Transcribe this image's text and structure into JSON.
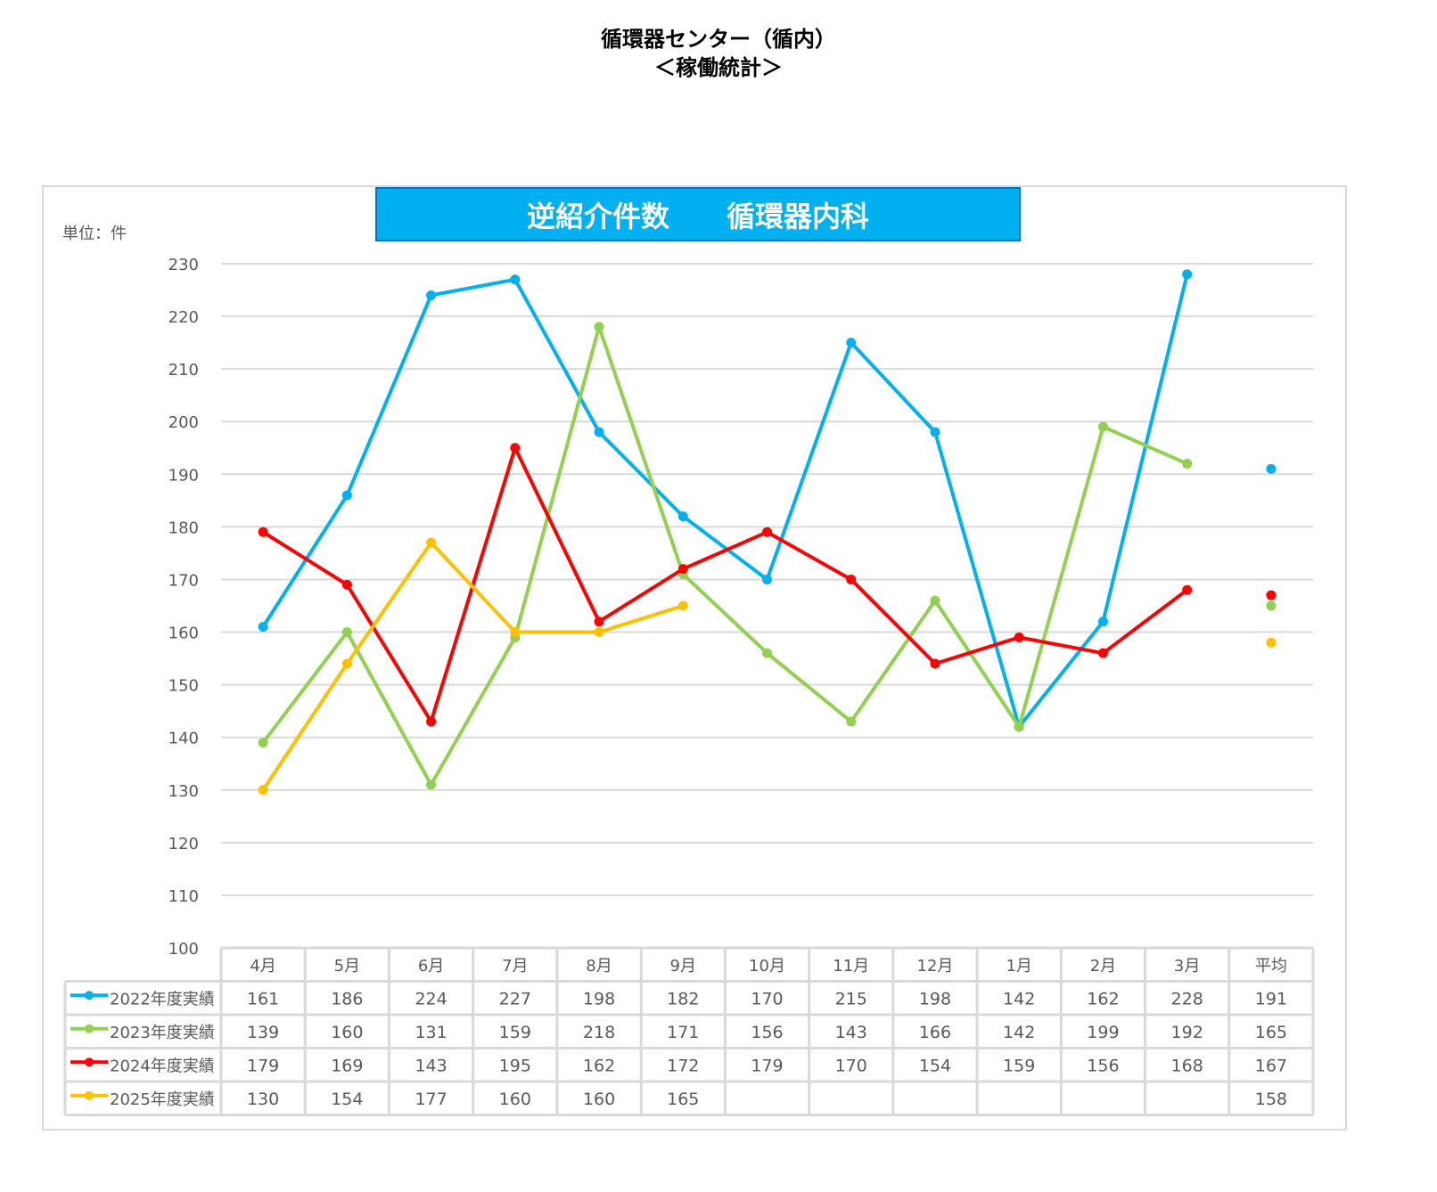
{
  "page_title": "循環器センター（循内）",
  "page_subtitle": "＜稼働統計＞",
  "chart_data": {
    "type": "line",
    "title": "逆紹介件数　　循環器内科",
    "unit_label": "単位：件",
    "categories": [
      "4月",
      "5月",
      "6月",
      "7月",
      "8月",
      "9月",
      "10月",
      "11月",
      "12月",
      "1月",
      "2月",
      "3月"
    ],
    "average_label": "平均",
    "ylim": [
      100,
      230
    ],
    "yticks": [
      100,
      110,
      120,
      130,
      140,
      150,
      160,
      170,
      180,
      190,
      200,
      210,
      220,
      230
    ],
    "grid": true,
    "legend": "data-table",
    "title_bg": "#00B0F0",
    "series": [
      {
        "name": "2022年度実績",
        "color": "#00B0F0",
        "values": [
          161,
          186,
          224,
          227,
          198,
          182,
          170,
          215,
          198,
          142,
          162,
          228
        ],
        "average": 191
      },
      {
        "name": "2023年度実績",
        "color": "#92D050",
        "values": [
          139,
          160,
          131,
          159,
          218,
          171,
          156,
          143,
          166,
          142,
          199,
          192
        ],
        "average": 165
      },
      {
        "name": "2024年度実績",
        "color": "#FF0000",
        "values": [
          179,
          169,
          143,
          195,
          162,
          172,
          179,
          170,
          154,
          159,
          156,
          168
        ],
        "average": 167
      },
      {
        "name": "2025年度実績",
        "color": "#FFC000",
        "values": [
          130,
          154,
          177,
          160,
          160,
          165,
          null,
          null,
          null,
          null,
          null,
          null
        ],
        "average": 158
      }
    ]
  }
}
